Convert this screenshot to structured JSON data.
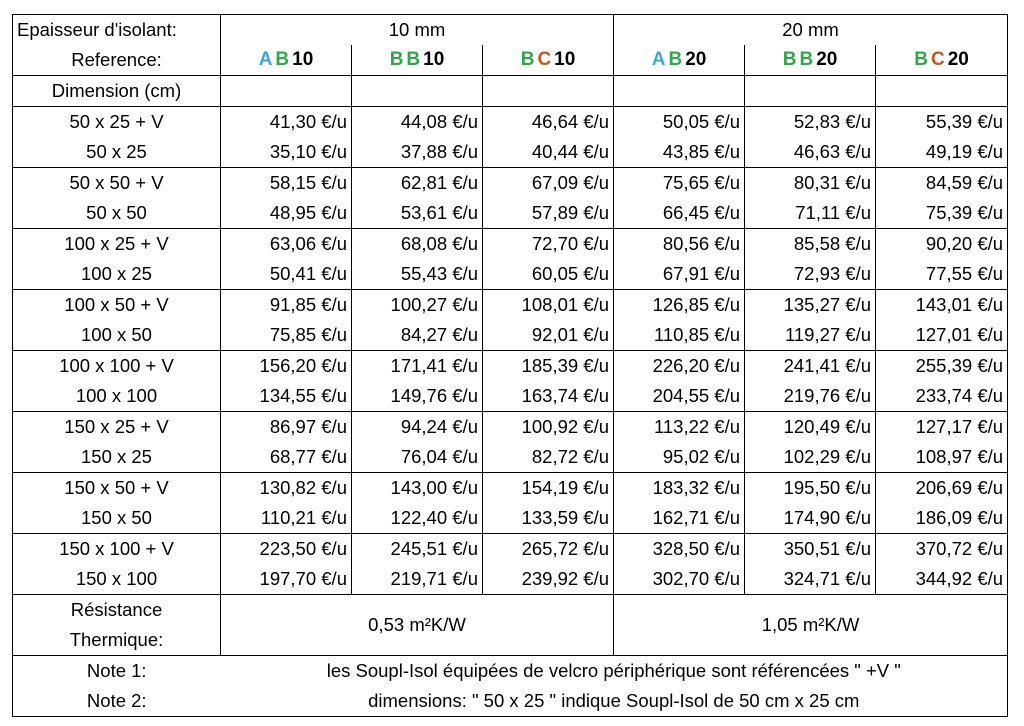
{
  "header": {
    "thickness_label": "Epaisseur d'isolant:",
    "reference_label": "Reference:",
    "dimension_label": "Dimension (cm)",
    "groups": [
      "10 mm",
      "20 mm"
    ]
  },
  "colors": {
    "A": "#3AA8E0",
    "B": "#2EA84A",
    "C": "#C8561E"
  },
  "references": [
    {
      "l1": "A",
      "c1": "#3AA8E0",
      "l2": "B",
      "c2": "#2EA84A",
      "n": "10"
    },
    {
      "l1": "B",
      "c1": "#2EA84A",
      "l2": "B",
      "c2": "#2EA84A",
      "n": "10"
    },
    {
      "l1": "B",
      "c1": "#2EA84A",
      "l2": "C",
      "c2": "#C8561E",
      "n": "10"
    },
    {
      "l1": "A",
      "c1": "#3AA8E0",
      "l2": "B",
      "c2": "#2EA84A",
      "n": "20"
    },
    {
      "l1": "B",
      "c1": "#2EA84A",
      "l2": "B",
      "c2": "#2EA84A",
      "n": "20"
    },
    {
      "l1": "B",
      "c1": "#2EA84A",
      "l2": "C",
      "c2": "#C8561E",
      "n": "20"
    }
  ],
  "rows": [
    {
      "dim": "50 x 25 + V",
      "prices": [
        "41,30 €/u",
        "44,08 €/u",
        "46,64 €/u",
        "50,05 €/u",
        "52,83 €/u",
        "55,39 €/u"
      ]
    },
    {
      "dim": "50 x 25",
      "prices": [
        "35,10 €/u",
        "37,88 €/u",
        "40,44 €/u",
        "43,85 €/u",
        "46,63 €/u",
        "49,19 €/u"
      ]
    },
    {
      "dim": "50 x 50 + V",
      "prices": [
        "58,15 €/u",
        "62,81 €/u",
        "67,09 €/u",
        "75,65 €/u",
        "80,31 €/u",
        "84,59 €/u"
      ]
    },
    {
      "dim": "50 x 50",
      "prices": [
        "48,95 €/u",
        "53,61 €/u",
        "57,89 €/u",
        "66,45 €/u",
        "71,11 €/u",
        "75,39 €/u"
      ]
    },
    {
      "dim": "100 x 25 + V",
      "prices": [
        "63,06 €/u",
        "68,08 €/u",
        "72,70 €/u",
        "80,56 €/u",
        "85,58 €/u",
        "90,20 €/u"
      ]
    },
    {
      "dim": "100 x 25",
      "prices": [
        "50,41 €/u",
        "55,43 €/u",
        "60,05 €/u",
        "67,91 €/u",
        "72,93 €/u",
        "77,55 €/u"
      ]
    },
    {
      "dim": "100 x 50 + V",
      "prices": [
        "91,85 €/u",
        "100,27 €/u",
        "108,01 €/u",
        "126,85 €/u",
        "135,27 €/u",
        "143,01 €/u"
      ]
    },
    {
      "dim": "100 x 50",
      "prices": [
        "75,85 €/u",
        "84,27 €/u",
        "92,01 €/u",
        "110,85 €/u",
        "119,27 €/u",
        "127,01 €/u"
      ]
    },
    {
      "dim": "100 x 100 + V",
      "prices": [
        "156,20 €/u",
        "171,41 €/u",
        "185,39 €/u",
        "226,20 €/u",
        "241,41 €/u",
        "255,39 €/u"
      ]
    },
    {
      "dim": "100 x 100",
      "prices": [
        "134,55 €/u",
        "149,76 €/u",
        "163,74 €/u",
        "204,55 €/u",
        "219,76 €/u",
        "233,74 €/u"
      ]
    },
    {
      "dim": "150 x 25 + V",
      "prices": [
        "86,97 €/u",
        "94,24 €/u",
        "100,92 €/u",
        "113,22 €/u",
        "120,49 €/u",
        "127,17 €/u"
      ]
    },
    {
      "dim": "150 x 25",
      "prices": [
        "68,77 €/u",
        "76,04 €/u",
        "82,72 €/u",
        "95,02 €/u",
        "102,29 €/u",
        "108,97 €/u"
      ]
    },
    {
      "dim": "150 x 50 + V",
      "prices": [
        "130,82 €/u",
        "143,00 €/u",
        "154,19 €/u",
        "183,32 €/u",
        "195,50 €/u",
        "206,69 €/u"
      ]
    },
    {
      "dim": "150 x 50",
      "prices": [
        "110,21 €/u",
        "122,40 €/u",
        "133,59 €/u",
        "162,71 €/u",
        "174,90 €/u",
        "186,09 €/u"
      ]
    },
    {
      "dim": "150 x 100 + V",
      "prices": [
        "223,50 €/u",
        "245,51 €/u",
        "265,72 €/u",
        "328,50 €/u",
        "350,51 €/u",
        "370,72 €/u"
      ]
    },
    {
      "dim": "150 x 100",
      "prices": [
        "197,70 €/u",
        "219,71 €/u",
        "239,92 €/u",
        "302,70 €/u",
        "324,71 €/u",
        "344,92 €/u"
      ]
    }
  ],
  "resistance": {
    "label_line1": "Résistance",
    "label_line2": "Thermique:",
    "values": [
      "0,53 m²K/W",
      "1,05 m²K/W"
    ]
  },
  "notes": [
    {
      "label": "Note 1:",
      "text": "les Soupl-Isol équipées de velcro périphérique sont référencées  \"  +V \""
    },
    {
      "label": "Note 2:",
      "text": "dimensions:  \" 50 x 25 \" indique  Soupl-Isol de 50 cm x 25 cm"
    }
  ]
}
